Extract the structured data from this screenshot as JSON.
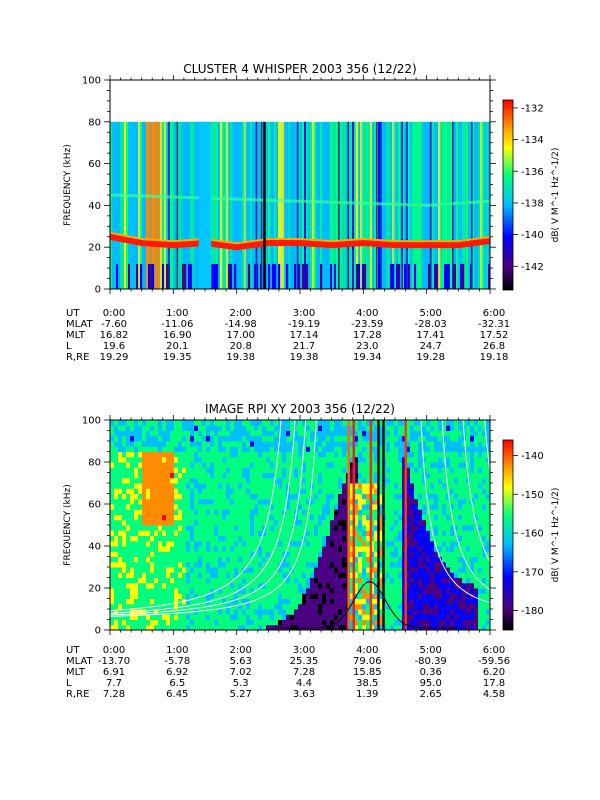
{
  "chart_data": [
    {
      "type": "heatmap",
      "title": "CLUSTER 4 WHISPER 2003 356 (12/22)",
      "ylabel": "FREQUENCY (kHz)",
      "ylim": [
        0,
        100
      ],
      "yticks": [
        "0",
        "20",
        "40",
        "60",
        "80",
        "100"
      ],
      "data_range_khz": [
        0,
        80
      ],
      "xlim": [
        "0:00",
        "6:00"
      ],
      "colorbar": {
        "label": "dB( V M^-1 Hz^-1/2)",
        "range": [
          -143.5,
          -131.5
        ],
        "ticks": [
          "-132",
          "-134",
          "-136",
          "-138",
          "-140",
          "-142"
        ],
        "colormap": [
          "#000000",
          "#4b0082",
          "#0000ff",
          "#00bfff",
          "#00ff7f",
          "#ffff00",
          "#ff8c00",
          "#ff0000"
        ]
      },
      "features": {
        "emission_band_khz": [
          [
            0,
            25
          ],
          [
            0.5,
            22
          ],
          [
            1,
            21
          ],
          [
            1.5,
            22
          ],
          [
            2,
            20
          ],
          [
            2.5,
            22
          ],
          [
            3,
            22
          ],
          [
            3.5,
            21
          ],
          [
            4,
            22
          ],
          [
            4.5,
            21
          ],
          [
            5,
            21
          ],
          [
            5.5,
            21
          ],
          [
            6,
            23
          ]
        ],
        "upper_band_khz": [
          [
            0,
            45
          ],
          [
            1,
            44
          ],
          [
            2,
            43
          ],
          [
            3,
            42
          ],
          [
            4,
            41
          ],
          [
            5,
            40
          ],
          [
            6,
            42
          ]
        ],
        "gap_intervals_hr": [
          [
            1.4,
            1.6
          ],
          [
            2.42,
            2.46
          ]
        ]
      },
      "ephemeris": {
        "labels": [
          "UT",
          "MLAT",
          "MLT",
          "L",
          "R,RE"
        ],
        "UT": [
          "0:00",
          "1:00",
          "2:00",
          "3:00",
          "4:00",
          "5:00",
          "6:00"
        ],
        "MLAT": [
          "-7.60",
          "-11.06",
          "-14.98",
          "-19.19",
          "-23.59",
          "-28.03",
          "-32.31"
        ],
        "MLT": [
          "16.82",
          "16.90",
          "17.00",
          "17.14",
          "17.28",
          "17.41",
          "17.52"
        ],
        "L": [
          "19.6",
          "20.1",
          "20.8",
          "21.7",
          "23.0",
          "24.7",
          "26.8"
        ],
        "R,RE": [
          "19.29",
          "19.35",
          "19.38",
          "19.38",
          "19.34",
          "19.28",
          "19.18"
        ]
      }
    },
    {
      "type": "heatmap",
      "title": "IMAGE RPI XY 2003 356 (12/22)",
      "ylabel": "FREQUENCY (kHz)",
      "ylim": [
        0,
        100
      ],
      "yticks": [
        "0",
        "20",
        "40",
        "60",
        "80",
        "100"
      ],
      "xlim": [
        "0:00",
        "6:00"
      ],
      "colorbar": {
        "label": "dB( V M^-1 Hz^-1/2)",
        "range": [
          -185,
          -136
        ],
        "ticks": [
          "-140",
          "-150",
          "-160",
          "-170",
          "-180"
        ],
        "colormap": [
          "#000000",
          "#4b0082",
          "#0000ff",
          "#00bfff",
          "#00ff7f",
          "#ffff00",
          "#ff8c00",
          "#ff0000"
        ]
      },
      "features": {
        "perigee_hr": 4.1,
        "overlay_curves": "white and black plasma-frequency / gyrofrequency traces converging near perigee"
      },
      "ephemeris": {
        "labels": [
          "UT",
          "MLAT",
          "MLT",
          "L",
          "R,RE"
        ],
        "UT": [
          "0:00",
          "1:00",
          "2:00",
          "3:00",
          "4:00",
          "5:00",
          "6:00"
        ],
        "MLAT": [
          "-13.70",
          "-5.78",
          "5.63",
          "25.35",
          "79.06",
          "-80.39",
          "-59.56"
        ],
        "MLT": [
          "6.91",
          "6.92",
          "7.02",
          "7.28",
          "15.85",
          "0.36",
          "6.20"
        ],
        "L": [
          "7.7",
          "6.5",
          "5.3",
          "4.4",
          "38.5",
          "95.0",
          "17.8"
        ],
        "R,RE": [
          "7.28",
          "6.45",
          "5.27",
          "3.63",
          "1.39",
          "2.65",
          "4.58"
        ]
      }
    }
  ]
}
